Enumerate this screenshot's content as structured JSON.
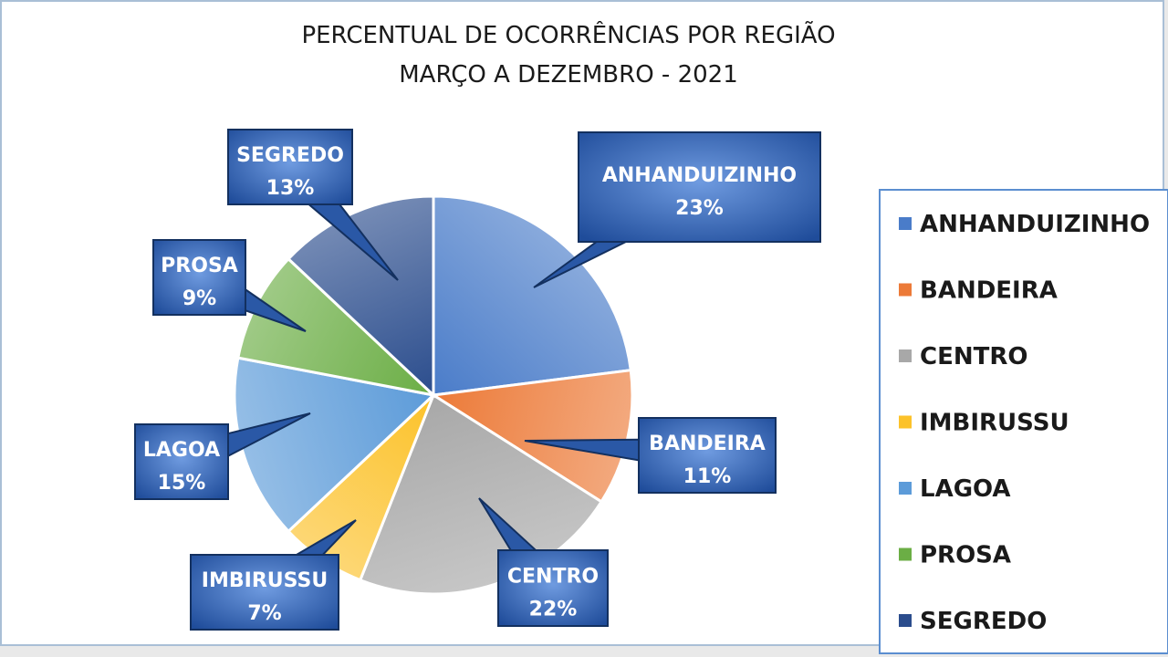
{
  "chart_data": {
    "type": "pie",
    "title": "PERCENTUAL DE OCORRÊNCIAS  POR REGIÃO",
    "subtitle": "MARÇO A DEZEMBRO - 2021",
    "categories": [
      "ANHANDUIZINHO",
      "BANDEIRA",
      "CENTRO",
      "IMBIRUSSU",
      "LAGOA",
      "PROSA",
      "SEGREDO"
    ],
    "values": [
      23,
      11,
      22,
      7,
      15,
      9,
      13
    ],
    "value_labels": [
      "23%",
      "11%",
      "22%",
      "7%",
      "15%",
      "9%",
      "13%"
    ],
    "colors": [
      "#4a7cc9",
      "#ec7a38",
      "#a8a8a8",
      "#fcc22a",
      "#5c9bd9",
      "#6bae45",
      "#2b4d8d"
    ],
    "legend": "right"
  }
}
